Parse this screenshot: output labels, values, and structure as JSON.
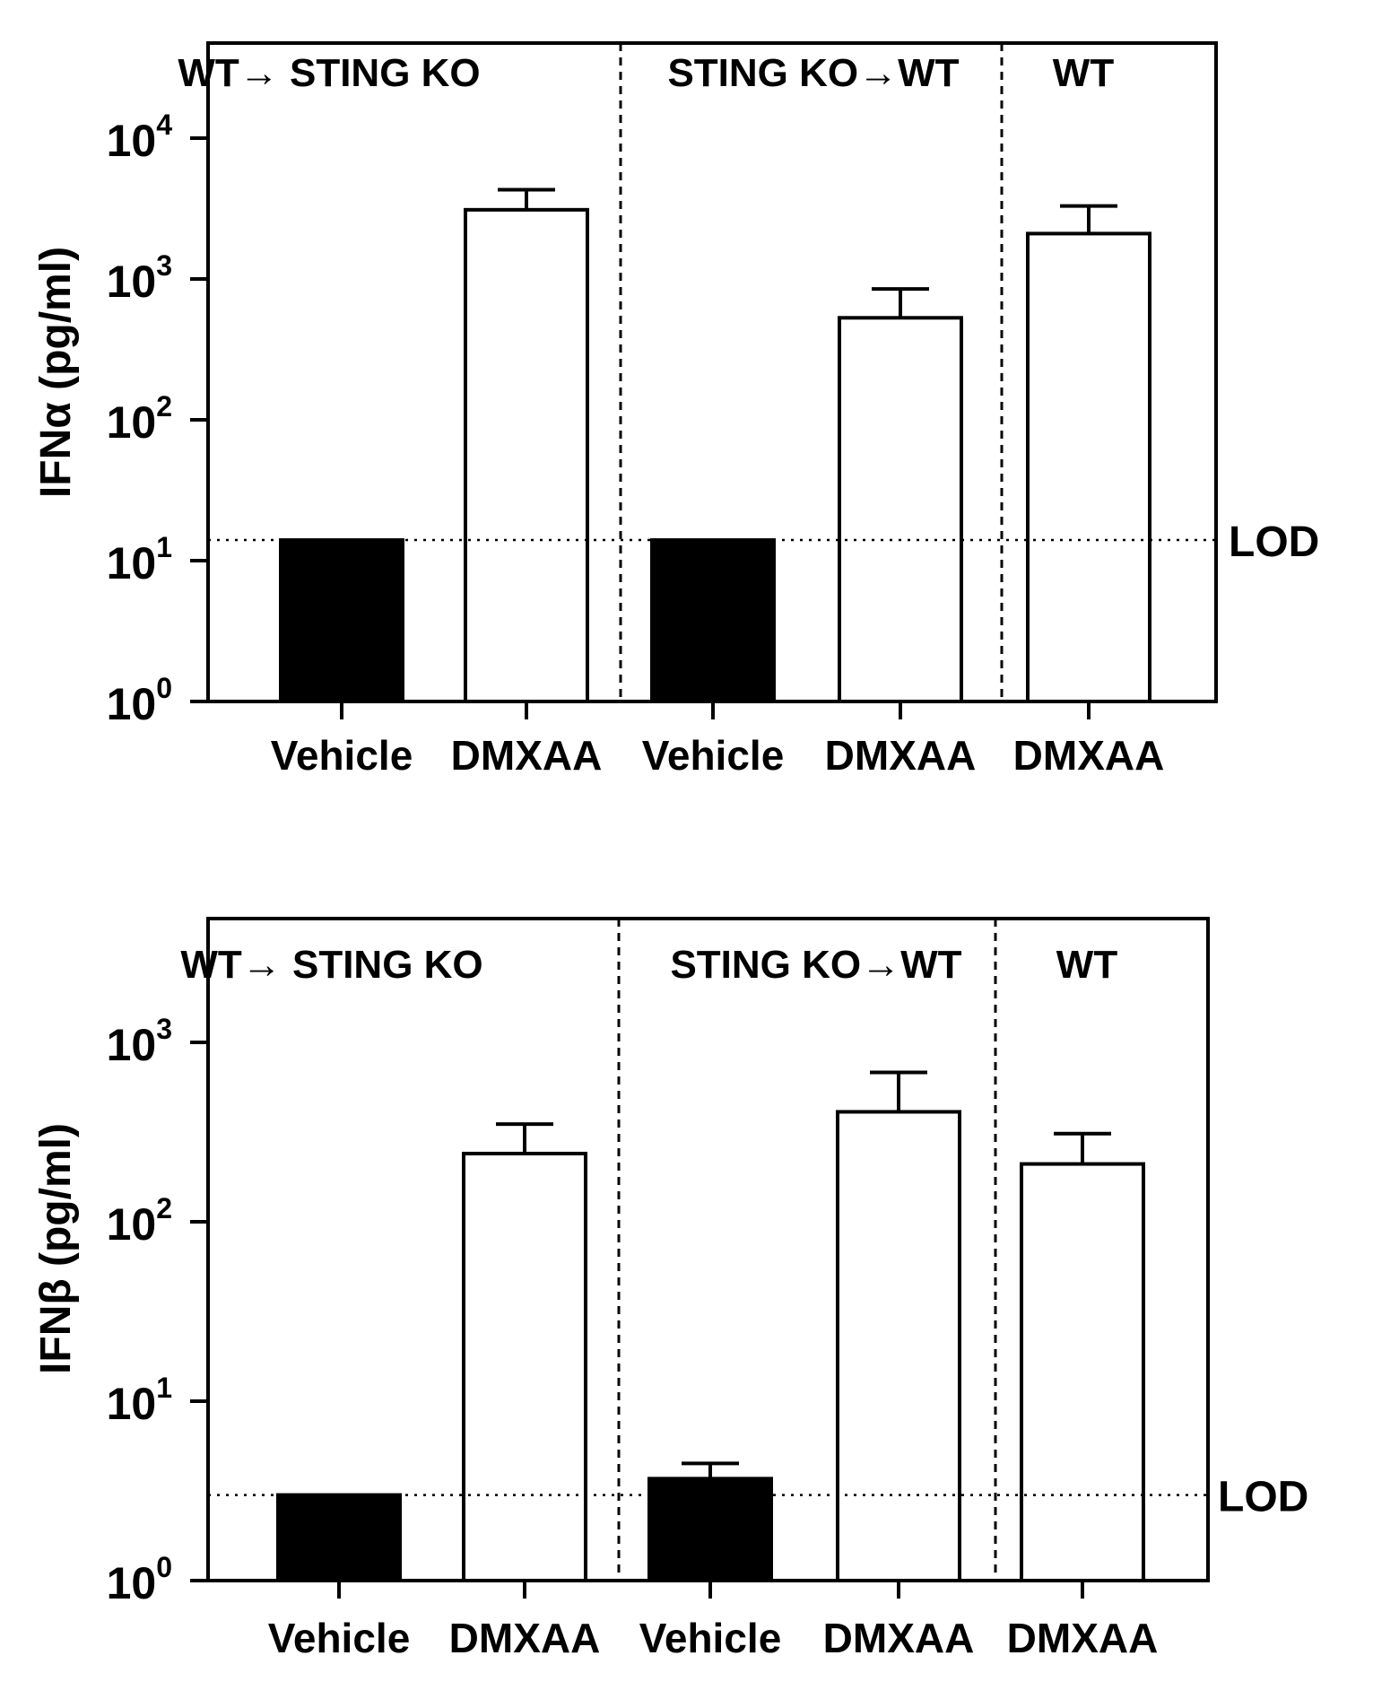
{
  "chart_data": [
    {
      "type": "bar",
      "ylabel": "IFNα (pg/ml)",
      "yscale": "log",
      "ylim": [
        1,
        50000
      ],
      "y_ticks": [
        {
          "value": 1,
          "base": "10",
          "exp": "0"
        },
        {
          "value": 10,
          "base": "10",
          "exp": "1"
        },
        {
          "value": 100,
          "base": "10",
          "exp": "2"
        },
        {
          "value": 1000,
          "base": "10",
          "exp": "3"
        },
        {
          "value": 10000,
          "base": "10",
          "exp": "4"
        }
      ],
      "categories": [
        "Vehicle",
        "DMXAA",
        "Vehicle",
        "DMXAA",
        "DMXAA"
      ],
      "values": [
        14,
        3100,
        14,
        530,
        2100
      ],
      "error_upper": [
        null,
        4300,
        null,
        850,
        3300
      ],
      "fills": [
        "#000000",
        "#ffffff",
        "#000000",
        "#ffffff",
        "#ffffff"
      ],
      "groups": [
        {
          "label": "WT→ STING KO",
          "bars": [
            0,
            1
          ]
        },
        {
          "label": "STING KO→WT",
          "bars": [
            2,
            3
          ]
        },
        {
          "label": "WT",
          "bars": [
            4
          ]
        }
      ],
      "lod": {
        "value": 14,
        "label": "LOD"
      }
    },
    {
      "type": "bar",
      "ylabel": "IFNβ (pg/ml)",
      "yscale": "log",
      "ylim": [
        1,
        5000
      ],
      "y_ticks": [
        {
          "value": 1,
          "base": "10",
          "exp": "0"
        },
        {
          "value": 10,
          "base": "10",
          "exp": "1"
        },
        {
          "value": 100,
          "base": "10",
          "exp": "2"
        },
        {
          "value": 1000,
          "base": "10",
          "exp": "3"
        }
      ],
      "categories": [
        "Vehicle",
        "DMXAA",
        "Vehicle",
        "DMXAA",
        "DMXAA"
      ],
      "values": [
        3,
        240,
        3.7,
        410,
        210
      ],
      "error_upper": [
        null,
        350,
        4.5,
        680,
        310
      ],
      "fills": [
        "#000000",
        "#ffffff",
        "#000000",
        "#ffffff",
        "#ffffff"
      ],
      "groups": [
        {
          "label": "WT→ STING KO",
          "bars": [
            0,
            1
          ]
        },
        {
          "label": "STING KO→WT",
          "bars": [
            2,
            3
          ]
        },
        {
          "label": "WT",
          "bars": [
            4
          ]
        }
      ],
      "lod": {
        "value": 3,
        "label": "LOD"
      }
    }
  ]
}
